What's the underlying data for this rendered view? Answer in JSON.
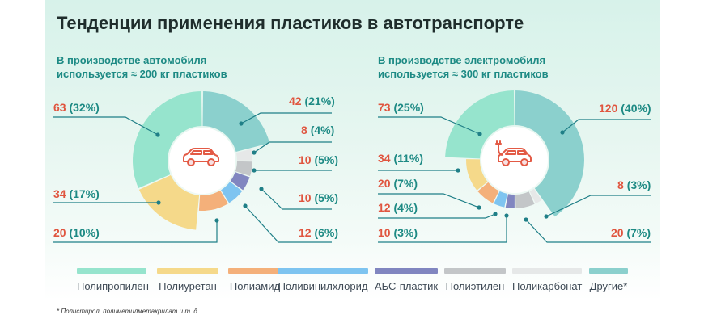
{
  "title": "Тенденции применения пластиков в автотранспорте",
  "left": {
    "subtitle_line1": "В производстве автомобиля",
    "subtitle_line2": "используется ≈ 200 кг пластиков"
  },
  "right": {
    "subtitle_line1": "В производстве электромобиля",
    "subtitle_line2": "используется ≈ 300 кг пластиков"
  },
  "colors": {
    "accent_text": "#e0553f",
    "muted_text": "#1d8a84",
    "leader": "#1f7f87",
    "car_icon": "#e35a45"
  },
  "legend": [
    {
      "label": "Полипропилен",
      "color": "#96e4cd"
    },
    {
      "label": "Полиуретан",
      "color": "#f5d98a"
    },
    {
      "label": "Полиамид",
      "color": "#f4b07a"
    },
    {
      "label": "Поливинилхлорид",
      "color": "#7ec4f0"
    },
    {
      "label": "АБС-пластик",
      "color": "#8186c0"
    },
    {
      "label": "Полиэтилен",
      "color": "#c3c6c8"
    },
    {
      "label": "Поликарбонат",
      "color": "#e6e8e8"
    },
    {
      "label": "Другие*",
      "color": "#8bd0cd"
    }
  ],
  "footnote": "* Полистирол, полиметилметакрилат и т. д.",
  "chart_data": [
    {
      "type": "pie",
      "title": "В производстве автомобиля используется ≈ 200 кг пластиков",
      "unit": "кг",
      "categories": [
        "Другие*",
        "Поликарбонат",
        "Полиэтилен",
        "АБС-пластик",
        "Поливинилхлорид",
        "Полиамид",
        "Полиуретан",
        "Полипропилен"
      ],
      "values": [
        42,
        8,
        10,
        10,
        12,
        20,
        34,
        63
      ],
      "labels": [
        {
          "value": "42",
          "pct": "(21%)"
        },
        {
          "value": "8",
          "pct": "(4%)"
        },
        {
          "value": "10",
          "pct": "(5%)"
        },
        {
          "value": "10",
          "pct": "(5%)"
        },
        {
          "value": "12",
          "pct": "(6%)"
        },
        {
          "value": "20",
          "pct": "(10%)"
        },
        {
          "value": "34",
          "pct": "(17%)"
        },
        {
          "value": "63",
          "pct": "(32%)"
        }
      ]
    },
    {
      "type": "pie",
      "title": "В производстве электромобиля используется ≈ 300 кг пластиков",
      "unit": "кг",
      "categories": [
        "Другие*",
        "Поликарбонат",
        "Полиэтилен",
        "АБС-пластик",
        "Поливинилхлорид",
        "Полиамид",
        "Полиуретан",
        "Полипропилен"
      ],
      "values": [
        120,
        8,
        20,
        10,
        12,
        20,
        34,
        73
      ],
      "labels": [
        {
          "value": "120",
          "pct": "(40%)"
        },
        {
          "value": "8",
          "pct": "(3%)"
        },
        {
          "value": "20",
          "pct": "(7%)"
        },
        {
          "value": "10",
          "pct": "(3%)"
        },
        {
          "value": "12",
          "pct": "(4%)"
        },
        {
          "value": "20",
          "pct": "(7%)"
        },
        {
          "value": "34",
          "pct": "(11%)"
        },
        {
          "value": "73",
          "pct": "(25%)"
        }
      ]
    }
  ]
}
